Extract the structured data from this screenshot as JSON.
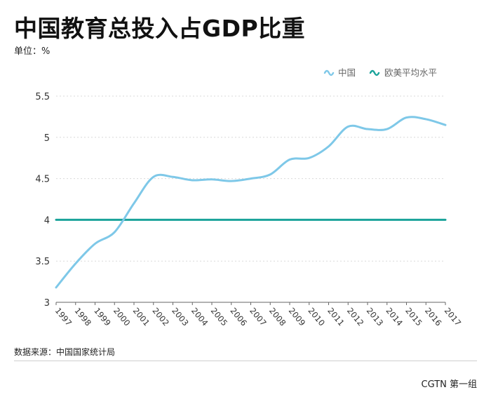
{
  "header": {
    "title": "中国教育总投入占GDP比重",
    "unit": "单位：%"
  },
  "footer": {
    "source": "数据来源：中国国家统计局",
    "credit": "CGTN 第一组"
  },
  "colors": {
    "china": "#7ec8e8",
    "western": "#1aa39a",
    "grid": "#d9d9d9"
  },
  "chart_data": {
    "type": "line",
    "x": [
      "1997",
      "1998",
      "1999",
      "2000",
      "2001",
      "2002",
      "2003",
      "2004",
      "2005",
      "2006",
      "2007",
      "2008",
      "2009",
      "2010",
      "2011",
      "2012",
      "2013",
      "2014",
      "2015",
      "2016",
      "2017"
    ],
    "series": [
      {
        "name": "中国",
        "color": "#7ec8e8",
        "values": [
          3.18,
          3.47,
          3.71,
          3.85,
          4.2,
          4.52,
          4.52,
          4.48,
          4.49,
          4.47,
          4.5,
          4.55,
          4.73,
          4.75,
          4.89,
          5.13,
          5.1,
          5.1,
          5.24,
          5.22,
          5.15
        ]
      },
      {
        "name": "欧美平均水平",
        "color": "#1aa39a",
        "values": [
          4,
          4,
          4,
          4,
          4,
          4,
          4,
          4,
          4,
          4,
          4,
          4,
          4,
          4,
          4,
          4,
          4,
          4,
          4,
          4,
          4
        ]
      }
    ],
    "ylim": [
      3,
      5.5
    ],
    "yticks": [
      {
        "value": 3,
        "label": "3"
      },
      {
        "value": 3.5,
        "label": "3.5"
      },
      {
        "value": 4,
        "label": "4"
      },
      {
        "value": 4.5,
        "label": "4.5"
      },
      {
        "value": 5,
        "label": "5"
      },
      {
        "value": 5.5,
        "label": "5.5"
      }
    ],
    "grid": true,
    "legend": "top-right"
  }
}
